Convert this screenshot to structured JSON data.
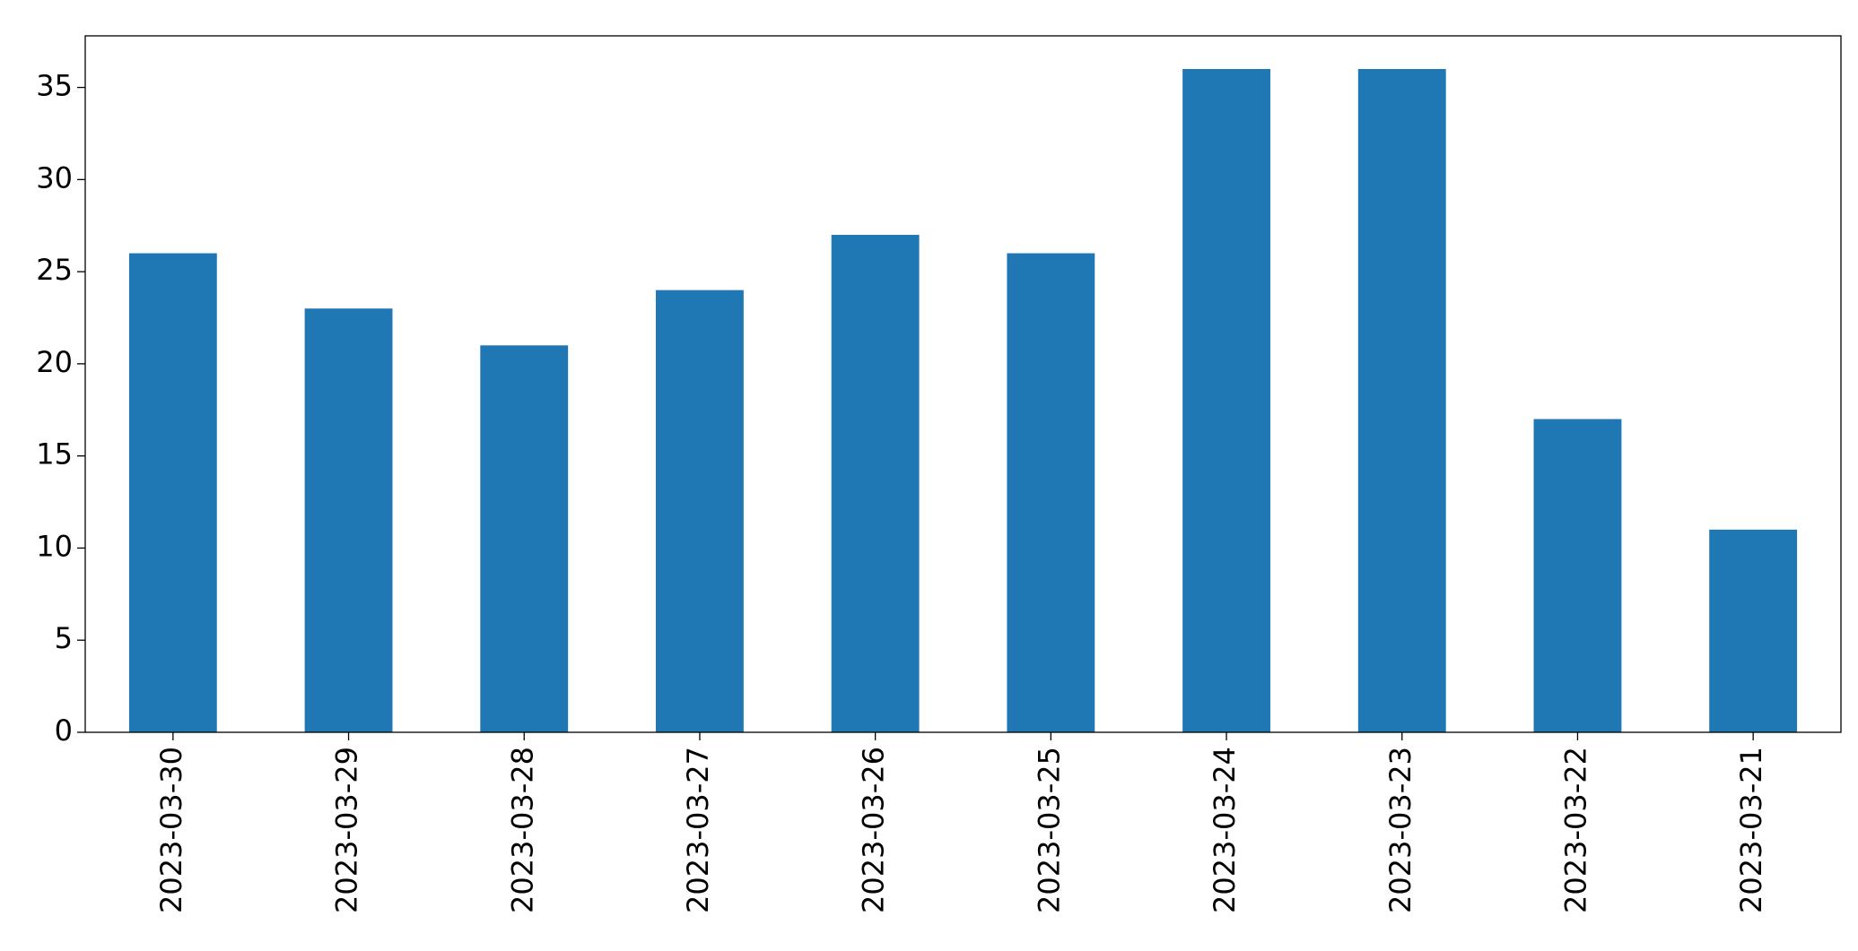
{
  "chart_data": {
    "type": "bar",
    "categories": [
      "2023-03-30",
      "2023-03-29",
      "2023-03-28",
      "2023-03-27",
      "2023-03-26",
      "2023-03-25",
      "2023-03-24",
      "2023-03-23",
      "2023-03-22",
      "2023-03-21"
    ],
    "values": [
      26,
      23,
      21,
      24,
      27,
      26,
      36,
      36,
      17,
      11
    ],
    "color": "#1f77b4",
    "ylim": [
      0,
      37.8
    ],
    "yticks": [
      0,
      5,
      10,
      15,
      20,
      25,
      30,
      35
    ],
    "grid": false
  }
}
